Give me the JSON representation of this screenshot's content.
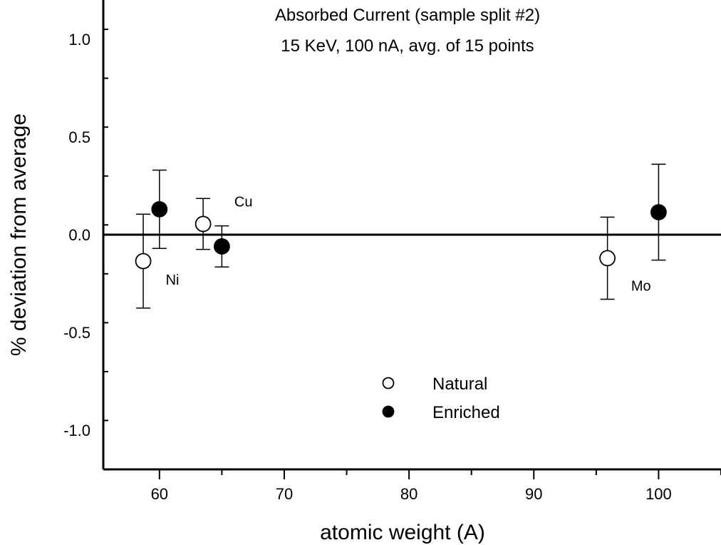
{
  "chart_data": {
    "type": "scatter",
    "title": "Absorbed Current (sample split #2)",
    "subtitle": "15 KeV, 100 nA, avg. of 15 points",
    "xlabel": "atomic weight (A)",
    "ylabel": "% deviation from average",
    "xlim": [
      55.5,
      105
    ],
    "ylim": [
      -1.2,
      1.2
    ],
    "x_ticks": [
      60,
      70,
      80,
      90,
      100
    ],
    "x_tick_labels": [
      "60",
      "70",
      "80",
      "90",
      "100"
    ],
    "y_ticks": [
      -1.0,
      -0.5,
      0.0,
      0.5,
      1.0
    ],
    "y_tick_labels": [
      "-1.0",
      "-0.5",
      "0.0",
      "0.5",
      "1.0"
    ],
    "grid": false,
    "reference_line_y": 0,
    "legend_position": "bottom-center",
    "series": [
      {
        "name": "Natural",
        "marker": "open-circle",
        "points": [
          {
            "x": 58.7,
            "y": -0.135,
            "err": 0.24
          },
          {
            "x": 63.5,
            "y": 0.055,
            "err": 0.13
          },
          {
            "x": 95.9,
            "y": -0.12,
            "err": 0.21
          }
        ]
      },
      {
        "name": "Enriched",
        "marker": "filled-circle",
        "points": [
          {
            "x": 60.0,
            "y": 0.13,
            "err": 0.2
          },
          {
            "x": 65.0,
            "y": -0.06,
            "err": 0.105
          },
          {
            "x": 100.0,
            "y": 0.115,
            "err": 0.245
          }
        ]
      }
    ],
    "annotations": [
      {
        "text": "Ni",
        "x": 60.5,
        "y": -0.23
      },
      {
        "text": "Cu",
        "x": 66.0,
        "y": 0.17
      },
      {
        "text": "Mo",
        "x": 97.8,
        "y": -0.26
      }
    ],
    "colors": {
      "axis": "#000000",
      "marker_fill": "#000000",
      "open_fill": "#ffffff"
    }
  }
}
